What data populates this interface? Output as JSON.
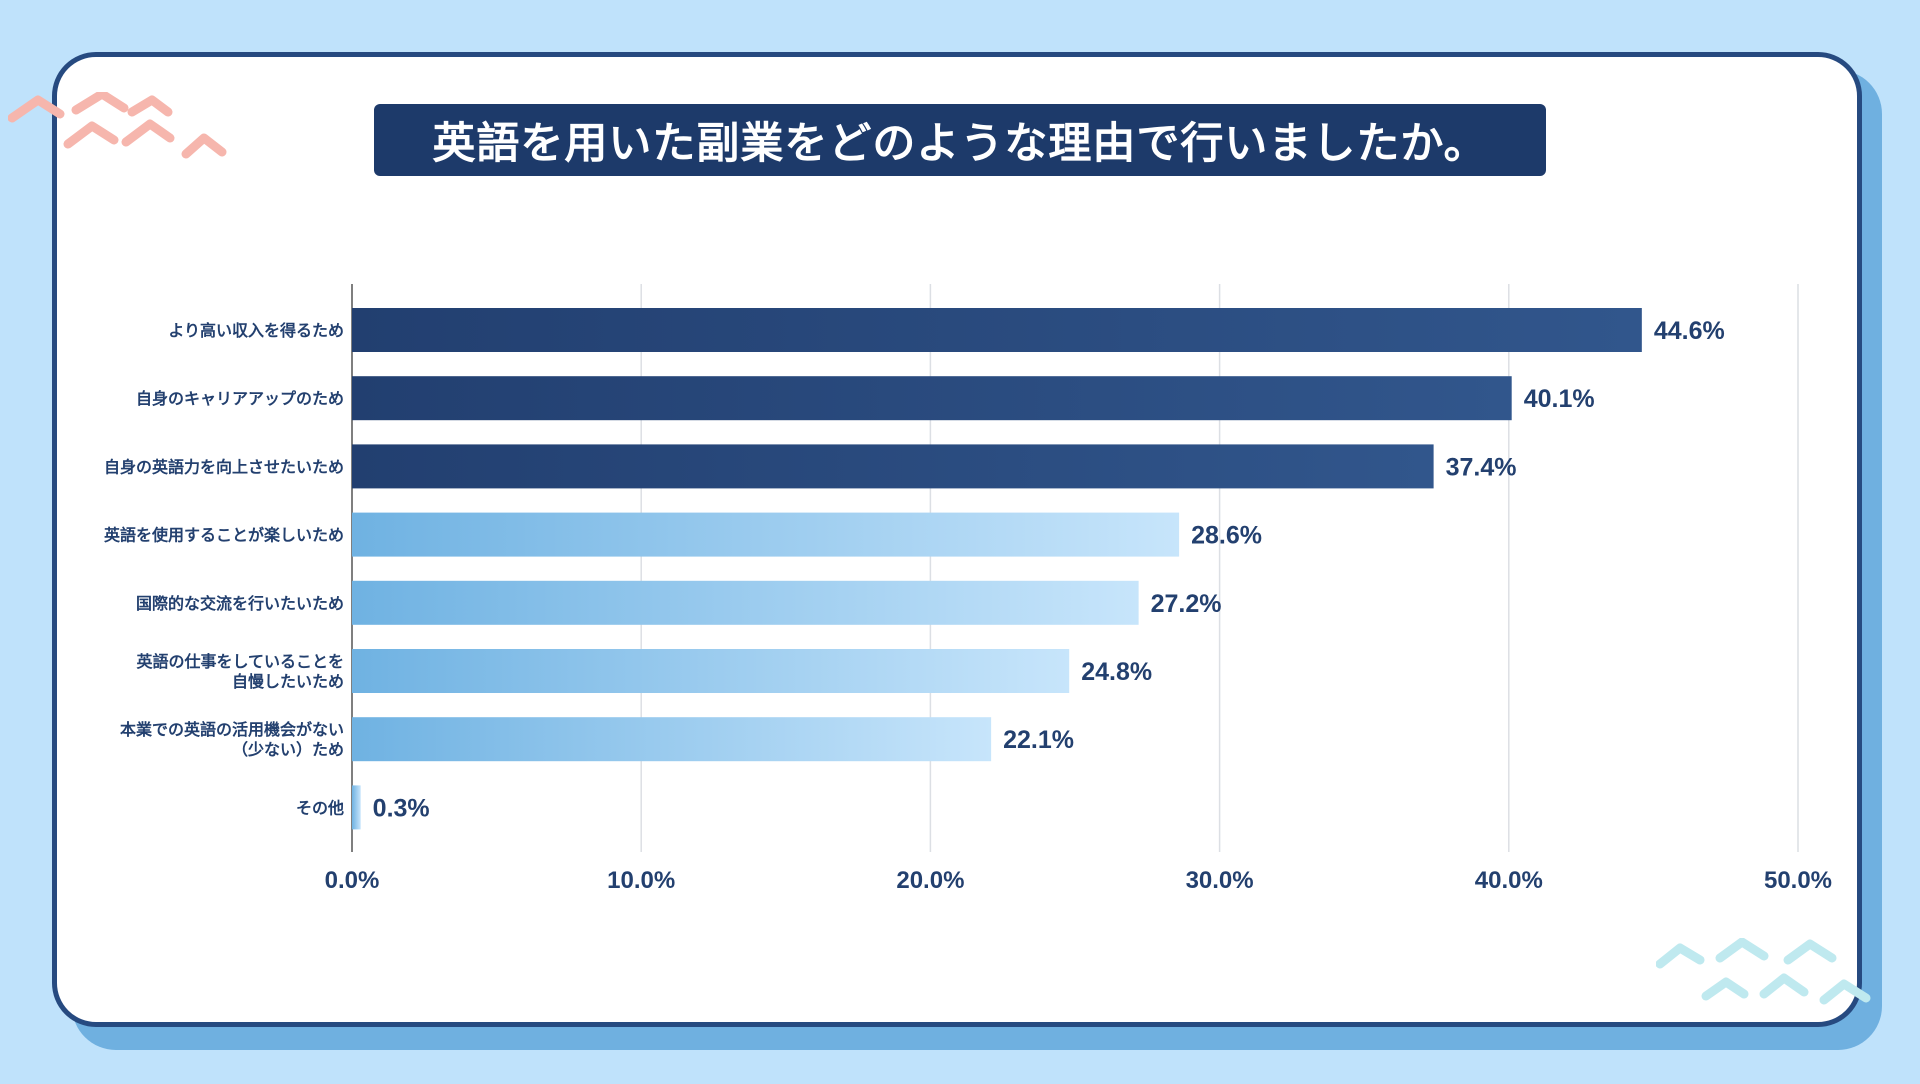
{
  "title": "英語を用いた副業をどのような理由で行いましたか。",
  "colors": {
    "background": "#bfe2fb",
    "card_border": "#264a80",
    "title_bg": "#1d3a6a",
    "bar_dark_start": "#223f70",
    "bar_dark_end": "#31568c",
    "bar_light_start": "#6fb2e2",
    "bar_light_end": "#c7e5fb",
    "text": "#23406f",
    "deco_pink": "#f6b6ad",
    "deco_mint": "#bfe9ef"
  },
  "chart_data": {
    "type": "bar",
    "orientation": "horizontal",
    "title": "英語を用いた副業をどのような理由で行いましたか。",
    "categories": [
      [
        "より高い収入を得るため"
      ],
      [
        "自身のキャリアアップのため"
      ],
      [
        "自身の英語力を向上させたいため"
      ],
      [
        "英語を使用することが楽しいため"
      ],
      [
        "国際的な交流を行いたいため"
      ],
      [
        "英語の仕事をしていることを",
        "自慢したいため"
      ],
      [
        "本業での英語の活用機会がない",
        "（少ない）ため"
      ],
      [
        "その他"
      ]
    ],
    "values": [
      44.6,
      40.1,
      37.4,
      28.6,
      27.2,
      24.8,
      22.1,
      0.3
    ],
    "value_labels": [
      "44.6%",
      "40.1%",
      "37.4%",
      "28.6%",
      "27.2%",
      "24.8%",
      "22.1%",
      "0.3%"
    ],
    "highlight": [
      true,
      true,
      true,
      false,
      false,
      false,
      false,
      false
    ],
    "xlim": [
      0,
      50
    ],
    "ticks": [
      0,
      10,
      20,
      30,
      40,
      50
    ],
    "tick_labels": [
      "0.0%",
      "10.0%",
      "20.0%",
      "30.0%",
      "40.0%",
      "50.0%"
    ],
    "grid": true,
    "xlabel": "",
    "ylabel": ""
  }
}
